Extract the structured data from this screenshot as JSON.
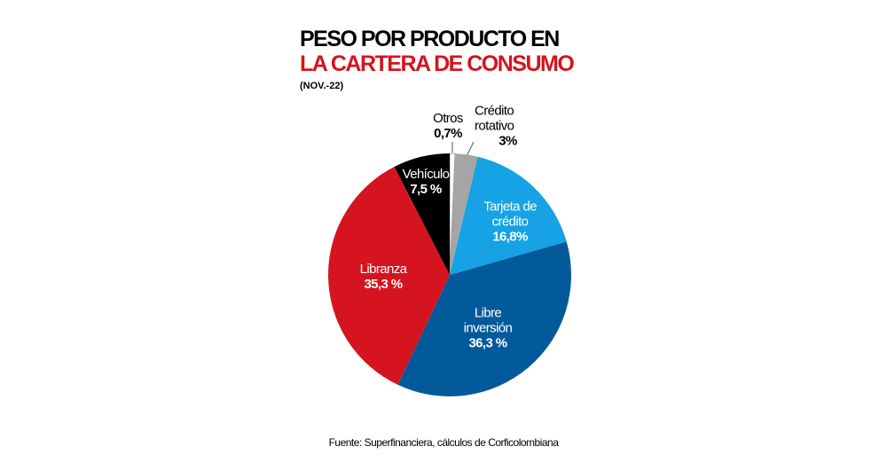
{
  "chart_data": {
    "type": "pie",
    "title": "PESO POR PRODUCTO EN",
    "title_highlight": "LA CARTERA DE CONSUMO",
    "subtitle": "(NOV.-22)",
    "source": "Fuente: Superfinanciera, cálculos de Corficolombiana",
    "categories": [
      "Otros",
      "Crédito rotativo",
      "Tarjeta de crédito",
      "Libre inversión",
      "Libranza",
      "Vehículo"
    ],
    "values": [
      0.7,
      3,
      16.8,
      36.3,
      35.3,
      7.5
    ],
    "value_labels": [
      "0,7%",
      "3%",
      "16,8%",
      "36,3 %",
      "35,3 %",
      "7,5 %"
    ],
    "colors": [
      "#ffffff",
      "#a5a5a5",
      "#16a2e4",
      "#035a9b",
      "#d5141f",
      "#000000"
    ]
  }
}
